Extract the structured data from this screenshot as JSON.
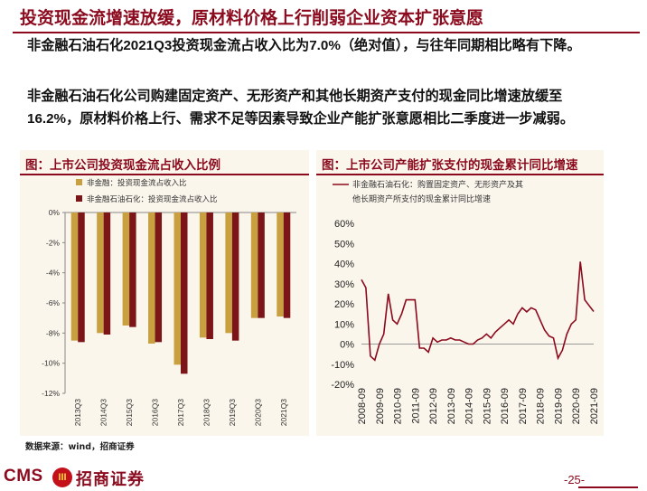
{
  "title": "投资现金流增速放缓，原材料价格上行削弱企业资本扩张意愿",
  "paragraphs": [
    {
      "pre": "非金融石油石化",
      "b1": "2021Q3",
      "mid": "投资现金流占收入比为",
      "b2": "7.0%",
      "post": "（绝对值），与往年同期相比略有下降。"
    },
    {
      "pre": "非金融石油石化公司购建固定资产、无形资产和其他长期资产支付的现金同比增速放缓至",
      "b1": "16.2%",
      "post": "，原材料价格上行、需求不足等因素导致企业产能扩张意愿相比二季度进一步减弱。"
    }
  ],
  "chart_left_title": "图：上市公司投资现金流占收入比例",
  "chart_right_title": "图：上市公司产能扩张支付的现金累计同比增速",
  "source": "数据来源：wind，招商证券",
  "footer": {
    "logo_text": "CMS",
    "logo_mark": "III",
    "logo_cn": "招商证券",
    "page": "-25-"
  },
  "chart_data": [
    {
      "type": "bar",
      "categories": [
        "2013Q3",
        "2014Q3",
        "2015Q3",
        "2016Q3",
        "2017Q3",
        "2018Q3",
        "2019Q3",
        "2020Q3",
        "2021Q3"
      ],
      "series": [
        {
          "name": "非金融：投资现金流占收入比",
          "color": "#c8a040",
          "values": [
            -8.5,
            -8.0,
            -7.5,
            -8.7,
            -10.1,
            -8.3,
            -8.0,
            -7.0,
            -6.9
          ]
        },
        {
          "name": "非金融石油石化：投资现金流占收入比",
          "color": "#7b1518",
          "values": [
            -8.6,
            -8.1,
            -7.6,
            -8.6,
            -10.7,
            -8.4,
            -8.5,
            -7.0,
            -7.0
          ]
        }
      ],
      "yticks": [
        "0%",
        "-2%",
        "-4%",
        "-6%",
        "-8%",
        "-10%",
        "-12%"
      ],
      "ylim": [
        -12,
        0
      ],
      "grid": false,
      "legend": "top-left"
    },
    {
      "type": "line",
      "series": [
        {
          "name": "非金融石油石化：购置固定资产、无形资产及其他长期资产所支付的现金累计同比增速",
          "legend_lines": [
            "非金融石油石化：购置固定资产、无形资产及其",
            "他长期资产所支付的现金累计同比增速"
          ],
          "color": "#8b0a1d",
          "x": [
            "2008-09",
            "2008-12",
            "2009-03",
            "2009-06",
            "2009-09",
            "2009-12",
            "2010-03",
            "2010-06",
            "2010-09",
            "2010-12",
            "2011-03",
            "2011-06",
            "2011-09",
            "2011-12",
            "2012-03",
            "2012-06",
            "2012-09",
            "2012-12",
            "2013-03",
            "2013-06",
            "2013-09",
            "2013-12",
            "2014-03",
            "2014-06",
            "2014-09",
            "2014-12",
            "2015-03",
            "2015-06",
            "2015-09",
            "2015-12",
            "2016-03",
            "2016-06",
            "2016-09",
            "2016-12",
            "2017-03",
            "2017-06",
            "2017-09",
            "2017-12",
            "2018-03",
            "2018-06",
            "2018-09",
            "2018-12",
            "2019-03",
            "2019-06",
            "2019-09",
            "2019-12",
            "2020-03",
            "2020-06",
            "2020-09",
            "2020-12",
            "2021-03",
            "2021-06",
            "2021-09"
          ],
          "values": [
            32,
            28,
            -6,
            -8,
            0,
            5,
            25,
            12,
            10,
            15,
            22,
            22,
            22,
            -2,
            -2,
            -4,
            3,
            1,
            2,
            2,
            3,
            2,
            2,
            1,
            0,
            0,
            2,
            3,
            5,
            3,
            6,
            8,
            10,
            12,
            10,
            15,
            18,
            16,
            18,
            17,
            12,
            7,
            4,
            3,
            -7,
            -3,
            5,
            10,
            12,
            41,
            22,
            19,
            16.2
          ]
        }
      ],
      "xticks": [
        "2008-09",
        "2009-09",
        "2010-09",
        "2011-09",
        "2012-09",
        "2013-09",
        "2014-09",
        "2015-09",
        "2016-09",
        "2017-09",
        "2018-09",
        "2019-09",
        "2020-09",
        "2021-09"
      ],
      "yticks": [
        "60%",
        "50%",
        "40%",
        "30%",
        "20%",
        "10%",
        "0%",
        "-10%",
        "-20%"
      ],
      "ylim": [
        -20,
        60
      ],
      "grid": false,
      "legend": "top"
    }
  ]
}
